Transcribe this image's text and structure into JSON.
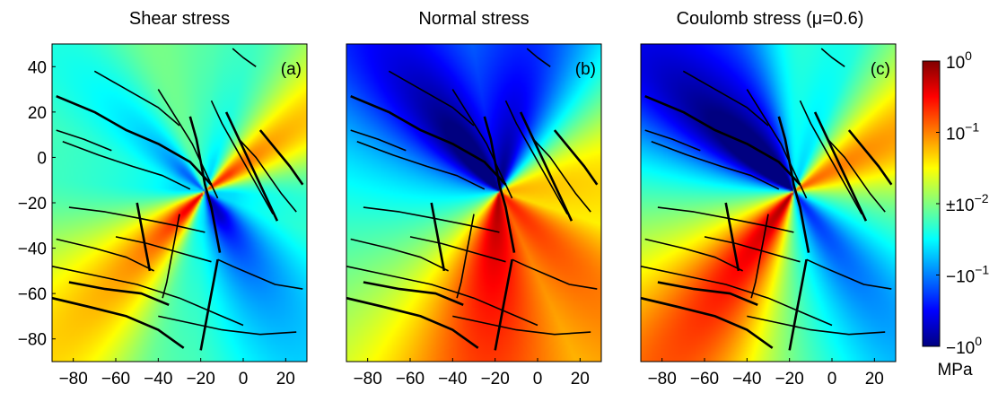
{
  "chart_data": [
    {
      "type": "heatmap",
      "title": "Shear stress",
      "panel_label": "(a)",
      "xlim": [
        -90,
        30
      ],
      "ylim": [
        -90,
        50
      ],
      "xticks": [
        -80,
        -60,
        -40,
        -20,
        0,
        20
      ],
      "yticks": [
        40,
        20,
        0,
        -20,
        -40,
        -60,
        -80
      ],
      "colormap": "jet",
      "pattern": "shear"
    },
    {
      "type": "heatmap",
      "title": "Normal stress",
      "panel_label": "(b)",
      "xlim": [
        -90,
        30
      ],
      "ylim": [
        -90,
        50
      ],
      "xticks": [
        -80,
        -60,
        -40,
        -20,
        0,
        20
      ],
      "yticks": [
        40,
        20,
        0,
        -20,
        -40,
        -60,
        -80
      ],
      "colormap": "jet",
      "pattern": "normal"
    },
    {
      "type": "heatmap",
      "title": "Coulomb stress (μ=0.6)",
      "panel_label": "(c)",
      "xlim": [
        -90,
        30
      ],
      "ylim": [
        -90,
        50
      ],
      "xticks": [
        -80,
        -60,
        -40,
        -20,
        0,
        20
      ],
      "yticks": [
        40,
        20,
        0,
        -20,
        -40,
        -60,
        -80
      ],
      "colormap": "jet",
      "pattern": "coulomb"
    }
  ],
  "colorbar": {
    "ticks": [
      {
        "base": "10",
        "exp": "0",
        "prefix": ""
      },
      {
        "base": "10",
        "exp": "−1",
        "prefix": ""
      },
      {
        "base": "10",
        "exp": "−2",
        "prefix": "±"
      },
      {
        "base": "10",
        "exp": "−1",
        "prefix": "−"
      },
      {
        "base": "10",
        "exp": "0",
        "prefix": "−"
      }
    ],
    "tick_fractions": [
      0.0,
      0.25,
      0.5,
      0.75,
      1.0
    ],
    "unit": "MPa",
    "colormap": "jet"
  },
  "faults": [
    [
      [
        -88,
        27
      ],
      [
        -70,
        20
      ],
      [
        -55,
        12
      ],
      [
        -40,
        6
      ],
      [
        -25,
        -2
      ],
      [
        -15,
        -12
      ]
    ],
    [
      [
        -85,
        7
      ],
      [
        -68,
        1
      ],
      [
        -52,
        -4
      ],
      [
        -38,
        -8
      ],
      [
        -25,
        -14
      ]
    ],
    [
      [
        -90,
        -48
      ],
      [
        -70,
        -52
      ],
      [
        -50,
        -56
      ],
      [
        -30,
        -62
      ],
      [
        -15,
        -68
      ],
      [
        0,
        -74
      ]
    ],
    [
      [
        -90,
        -62
      ],
      [
        -72,
        -66
      ],
      [
        -55,
        -70
      ],
      [
        -40,
        -76
      ],
      [
        -28,
        -84
      ]
    ],
    [
      [
        -82,
        -22
      ],
      [
        -65,
        -24
      ],
      [
        -48,
        -27
      ],
      [
        -32,
        -30
      ],
      [
        -18,
        -33
      ]
    ],
    [
      [
        -88,
        -36
      ],
      [
        -70,
        -40
      ],
      [
        -55,
        -44
      ],
      [
        -42,
        -50
      ]
    ],
    [
      [
        -25,
        18
      ],
      [
        -22,
        8
      ],
      [
        -20,
        -2
      ],
      [
        -18,
        -12
      ],
      [
        -15,
        -22
      ],
      [
        -13,
        -32
      ],
      [
        -11,
        -42
      ]
    ],
    [
      [
        -40,
        30
      ],
      [
        -32,
        18
      ],
      [
        -24,
        6
      ],
      [
        -18,
        -6
      ],
      [
        -12,
        -18
      ]
    ],
    [
      [
        -15,
        25
      ],
      [
        -10,
        15
      ],
      [
        -4,
        5
      ],
      [
        2,
        -5
      ],
      [
        8,
        -15
      ],
      [
        14,
        -25
      ]
    ],
    [
      [
        -8,
        20
      ],
      [
        -2,
        8
      ],
      [
        4,
        -4
      ],
      [
        10,
        -16
      ],
      [
        16,
        -28
      ]
    ],
    [
      [
        -2,
        8
      ],
      [
        6,
        0
      ],
      [
        12,
        -8
      ],
      [
        18,
        -16
      ],
      [
        25,
        -24
      ]
    ],
    [
      [
        -70,
        38
      ],
      [
        -55,
        30
      ],
      [
        -40,
        22
      ],
      [
        -30,
        14
      ]
    ],
    [
      [
        -12,
        -45
      ],
      [
        -14,
        -55
      ],
      [
        -16,
        -65
      ],
      [
        -18,
        -75
      ],
      [
        -20,
        -85
      ]
    ],
    [
      [
        -12,
        -45
      ],
      [
        -5,
        -48
      ],
      [
        5,
        -52
      ],
      [
        15,
        -56
      ],
      [
        28,
        -58
      ]
    ],
    [
      [
        -30,
        -25
      ],
      [
        -32,
        -35
      ],
      [
        -34,
        -45
      ],
      [
        -36,
        -55
      ],
      [
        -38,
        -62
      ]
    ],
    [
      [
        -50,
        -20
      ],
      [
        -48,
        -30
      ],
      [
        -46,
        -40
      ],
      [
        -44,
        -50
      ]
    ],
    [
      [
        -5,
        48
      ],
      [
        0,
        44
      ],
      [
        6,
        40
      ]
    ],
    [
      [
        -88,
        12
      ],
      [
        -75,
        8
      ],
      [
        -62,
        3
      ]
    ],
    [
      [
        8,
        12
      ],
      [
        15,
        4
      ],
      [
        22,
        -4
      ],
      [
        28,
        -12
      ]
    ],
    [
      [
        -60,
        -35
      ],
      [
        -45,
        -38
      ],
      [
        -30,
        -42
      ],
      [
        -15,
        -46
      ]
    ],
    [
      [
        -40,
        -70
      ],
      [
        -25,
        -73
      ],
      [
        -10,
        -76
      ],
      [
        8,
        -78
      ],
      [
        25,
        -77
      ]
    ],
    [
      [
        -82,
        -55
      ],
      [
        -65,
        -58
      ],
      [
        -48,
        -60
      ],
      [
        -35,
        -65
      ]
    ]
  ]
}
